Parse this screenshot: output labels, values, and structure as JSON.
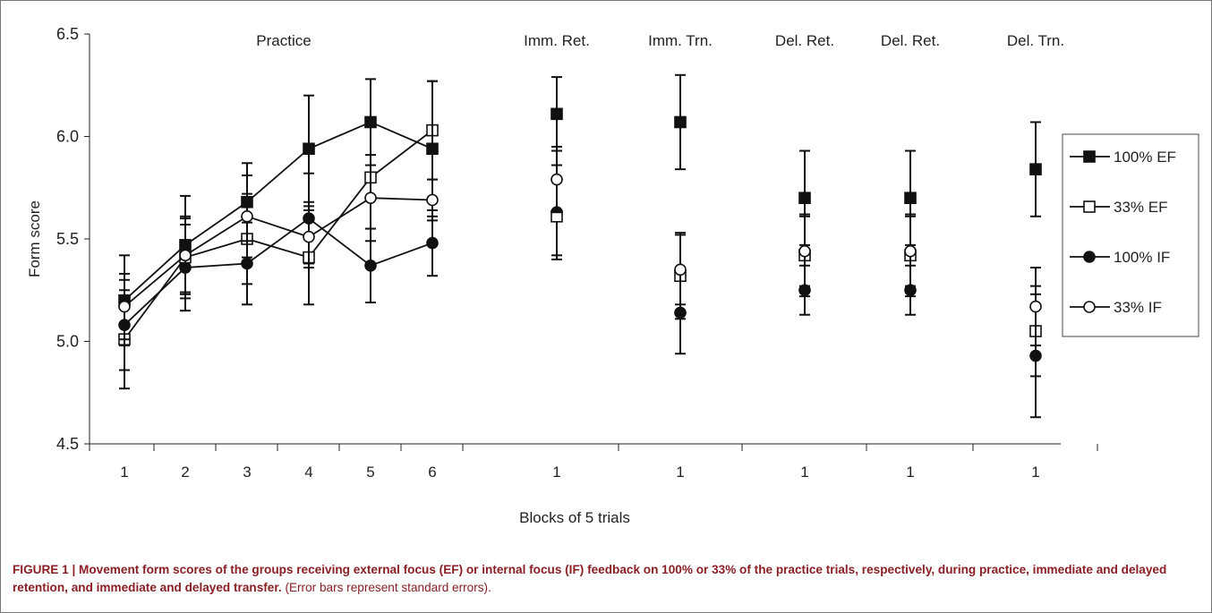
{
  "chart_data": {
    "type": "scatter",
    "xlabel": "Blocks of 5 trials",
    "ylabel": "Form score",
    "ylim": [
      4.5,
      6.5
    ],
    "yticks": [
      "4.5",
      "5.0",
      "5.5",
      "6.0",
      "6.5"
    ],
    "grid": false,
    "legend_position": "right",
    "groups": [
      {
        "label": "Practice",
        "ticks": [
          "1",
          "2",
          "3",
          "4",
          "5",
          "6"
        ]
      },
      {
        "label": "Imm. Ret.",
        "ticks": [
          "1"
        ]
      },
      {
        "label": "Imm. Trn.",
        "ticks": [
          "1"
        ]
      },
      {
        "label": "Del. Ret.",
        "ticks": [
          "1"
        ]
      },
      {
        "label": "Del. Ret.",
        "ticks": [
          "1"
        ]
      },
      {
        "label": "Del. Trn.",
        "ticks": [
          "1"
        ]
      }
    ],
    "series": [
      {
        "name": "100% EF",
        "marker": "filled-square",
        "values": [
          5.2,
          5.47,
          5.68,
          5.94,
          6.07,
          5.94,
          6.11,
          6.07,
          5.7,
          5.7,
          5.84
        ],
        "errors": [
          0.22,
          0.24,
          0.19,
          0.26,
          0.21,
          0.33,
          0.18,
          0.23,
          0.23,
          0.23,
          0.23
        ]
      },
      {
        "name": "33% EF",
        "marker": "open-square",
        "values": [
          5.01,
          5.41,
          5.5,
          5.41,
          5.8,
          6.03,
          5.61,
          5.32,
          5.42,
          5.42,
          5.05
        ],
        "errors": [
          0.24,
          0.2,
          0.22,
          0.23,
          0.25,
          0.24,
          0.19,
          0.21,
          0.2,
          0.2,
          0.22
        ]
      },
      {
        "name": "100% IF",
        "marker": "filled-circle",
        "values": [
          5.08,
          5.36,
          5.38,
          5.6,
          5.37,
          5.48,
          5.63,
          5.14,
          5.25,
          5.25,
          4.93
        ],
        "errors": [
          0.22,
          0.21,
          0.2,
          0.22,
          0.18,
          0.16,
          0.23,
          0.2,
          0.12,
          0.12,
          0.3
        ]
      },
      {
        "name": "33% IF",
        "marker": "open-circle",
        "values": [
          5.17,
          5.42,
          5.61,
          5.51,
          5.7,
          5.69,
          5.79,
          5.35,
          5.44,
          5.44,
          5.17
        ],
        "errors": [
          0.16,
          0.18,
          0.2,
          0.15,
          0.21,
          0.1,
          0.16,
          0.17,
          0.17,
          0.17,
          0.19
        ]
      }
    ],
    "connected_points": 6
  },
  "caption": {
    "bold": "FIGURE 1 | Movement form scores of the groups receiving external focus (EF) or internal focus (IF) feedback on 100% or 33% of the practice trials, respectively, during practice, immediate and delayed retention, and immediate and delayed transfer.",
    "note": "(Error bars represent standard errors)."
  }
}
